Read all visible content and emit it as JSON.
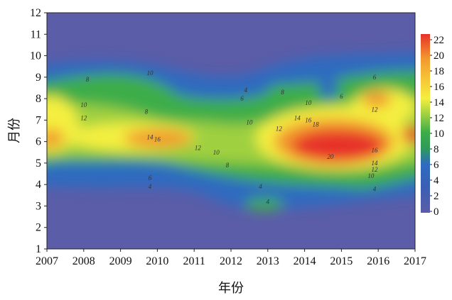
{
  "chart_data": {
    "type": "heatmap",
    "title": "",
    "xlabel": "年份",
    "ylabel": "月份",
    "xlim": [
      2007,
      2017
    ],
    "ylim": [
      1,
      12
    ],
    "x_ticks": [
      "2007",
      "2008",
      "2009",
      "2010",
      "2011",
      "2012",
      "2013",
      "2014",
      "2015",
      "2016",
      "2017"
    ],
    "y_ticks": [
      "1",
      "2",
      "3",
      "4",
      "5",
      "6",
      "7",
      "8",
      "9",
      "10",
      "11",
      "12"
    ],
    "colorbar": {
      "ticks": [
        "0",
        "2",
        "4",
        "6",
        "8",
        "10",
        "12",
        "14",
        "16",
        "18",
        "20",
        "22"
      ],
      "range": [
        0,
        22
      ]
    },
    "colors": {
      "low": "#5b5da8",
      "mid_low": "#2f6bc0",
      "mid": "#3cad48",
      "mid_high": "#f4ef3f",
      "high": "#f29a2e",
      "max": "#e7322a"
    },
    "contour_labels": [
      {
        "text": "8",
        "x": 2008.1,
        "y": 8.8
      },
      {
        "text": "10",
        "x": 2009.8,
        "y": 9.1
      },
      {
        "text": "10",
        "x": 2008.0,
        "y": 7.6
      },
      {
        "text": "12",
        "x": 2008.0,
        "y": 7.0
      },
      {
        "text": "8",
        "x": 2009.7,
        "y": 7.3
      },
      {
        "text": "14",
        "x": 2009.8,
        "y": 6.1
      },
      {
        "text": "16",
        "x": 2010.0,
        "y": 6.0
      },
      {
        "text": "12",
        "x": 2011.1,
        "y": 5.6
      },
      {
        "text": "10",
        "x": 2011.6,
        "y": 5.4
      },
      {
        "text": "8",
        "x": 2011.9,
        "y": 4.8
      },
      {
        "text": "6",
        "x": 2012.3,
        "y": 7.9
      },
      {
        "text": "4",
        "x": 2012.4,
        "y": 8.3
      },
      {
        "text": "10",
        "x": 2012.5,
        "y": 6.8
      },
      {
        "text": "12",
        "x": 2013.3,
        "y": 6.5
      },
      {
        "text": "8",
        "x": 2013.4,
        "y": 8.2
      },
      {
        "text": "14",
        "x": 2013.8,
        "y": 7.0
      },
      {
        "text": "10",
        "x": 2014.1,
        "y": 7.7
      },
      {
        "text": "16",
        "x": 2014.1,
        "y": 6.9
      },
      {
        "text": "18",
        "x": 2014.3,
        "y": 6.7
      },
      {
        "text": "20",
        "x": 2014.7,
        "y": 5.2
      },
      {
        "text": "16",
        "x": 2015.9,
        "y": 5.5
      },
      {
        "text": "12",
        "x": 2015.9,
        "y": 7.4
      },
      {
        "text": "6",
        "x": 2015.0,
        "y": 8.0
      },
      {
        "text": "6",
        "x": 2015.9,
        "y": 8.9
      },
      {
        "text": "14",
        "x": 2015.9,
        "y": 4.9
      },
      {
        "text": "12",
        "x": 2015.9,
        "y": 4.6
      },
      {
        "text": "10",
        "x": 2015.8,
        "y": 4.3
      },
      {
        "text": "4",
        "x": 2015.9,
        "y": 3.7
      },
      {
        "text": "6",
        "x": 2009.8,
        "y": 4.2
      },
      {
        "text": "4",
        "x": 2009.8,
        "y": 3.8
      },
      {
        "text": "4",
        "x": 2012.8,
        "y": 3.8
      },
      {
        "text": "4",
        "x": 2013.0,
        "y": 3.1
      }
    ]
  }
}
